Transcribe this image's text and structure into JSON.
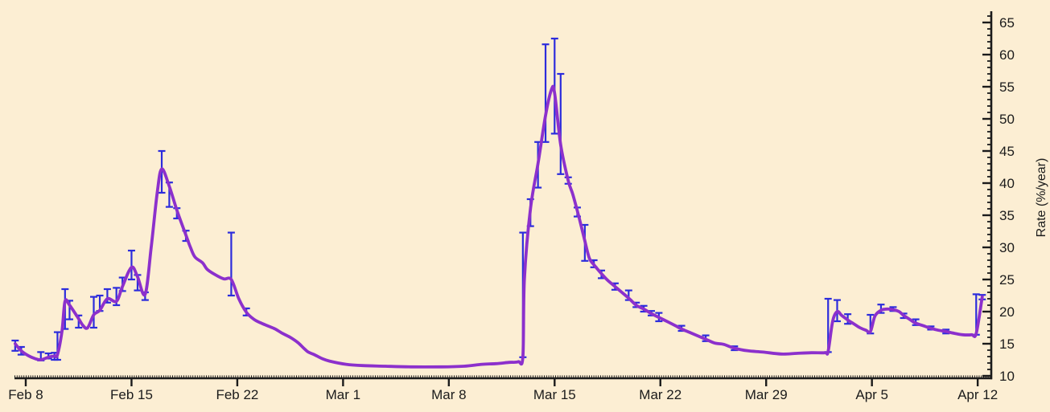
{
  "chart_data": {
    "type": "line",
    "title": "",
    "ylabel": "Rate (%/year)",
    "grid": false,
    "legend": null,
    "x_ticks": [
      {
        "day": 0,
        "label": "Feb 8"
      },
      {
        "day": 7,
        "label": "Feb 15"
      },
      {
        "day": 14,
        "label": "Feb 22"
      },
      {
        "day": 21,
        "label": "Mar 1"
      },
      {
        "day": 28,
        "label": "Mar 8"
      },
      {
        "day": 35,
        "label": "Mar 15"
      },
      {
        "day": 42,
        "label": "Mar 22"
      },
      {
        "day": 49,
        "label": "Mar 29"
      },
      {
        "day": 56,
        "label": "Apr 5"
      },
      {
        "day": 63,
        "label": "Apr 12"
      }
    ],
    "y_axis": {
      "min": 10,
      "max": 65,
      "major_step": 5,
      "minor_step": 1,
      "side": "right"
    },
    "x_range_days": [
      -0.8,
      63.6
    ],
    "colors": {
      "background": "#FCEED3",
      "axis": "#1b1b1b",
      "text": "#1b1b1b",
      "line": "#8C30CC",
      "error_bar": "#2C2CDC"
    },
    "series": [
      {
        "name": "Rate",
        "points": [
          [
            -0.7,
            15.0,
            13.9,
            15.5
          ],
          [
            -0.3,
            13.9,
            13.3,
            14.5
          ],
          [
            0.2,
            13.1
          ],
          [
            0.6,
            12.7
          ],
          [
            1.0,
            12.5,
            12.4,
            13.7
          ],
          [
            1.5,
            12.9,
            12.7,
            13.5
          ],
          [
            1.9,
            13.1,
            12.5,
            13.6
          ],
          [
            2.1,
            13.3,
            12.5,
            16.8
          ],
          [
            2.4,
            17.0
          ],
          [
            2.6,
            21.6,
            17.3,
            23.5
          ],
          [
            2.9,
            21.0,
            18.8,
            21.7
          ],
          [
            3.5,
            18.9,
            17.5,
            19.4
          ],
          [
            3.8,
            17.8
          ],
          [
            4.1,
            17.5
          ],
          [
            4.5,
            19.5,
            17.5,
            22.3
          ],
          [
            4.9,
            20.2,
            20.1,
            22.5
          ],
          [
            5.4,
            22.0,
            21.4,
            23.5
          ],
          [
            6.0,
            21.6,
            21.0,
            23.7
          ],
          [
            6.4,
            23.9,
            23.2,
            25.3
          ],
          [
            7.0,
            26.9,
            25.0,
            29.5
          ],
          [
            7.4,
            25.4,
            23.3,
            25.7
          ],
          [
            7.9,
            22.7,
            21.8,
            23.0
          ],
          [
            8.3,
            30.0
          ],
          [
            8.7,
            38.5
          ],
          [
            9.0,
            42.2,
            38.5,
            45.0
          ],
          [
            9.5,
            39.5,
            36.3,
            40.1
          ],
          [
            10.0,
            35.8,
            34.5,
            36.1
          ],
          [
            10.6,
            31.9,
            31.0,
            32.6
          ],
          [
            10.9,
            30.0
          ],
          [
            11.2,
            28.5
          ],
          [
            11.7,
            27.6
          ],
          [
            12.0,
            26.6
          ],
          [
            12.5,
            25.8
          ],
          [
            13.1,
            25.1
          ],
          [
            13.6,
            25.0,
            22.5,
            32.3
          ],
          [
            14.1,
            22.0
          ],
          [
            14.6,
            19.9,
            19.4,
            20.5
          ],
          [
            15.1,
            18.8
          ],
          [
            15.5,
            18.3
          ],
          [
            16.0,
            17.8
          ],
          [
            16.5,
            17.3
          ],
          [
            17.0,
            16.6
          ],
          [
            17.5,
            16.0
          ],
          [
            18.0,
            15.2
          ],
          [
            18.4,
            14.3
          ],
          [
            18.7,
            13.7
          ],
          [
            19.1,
            13.3
          ],
          [
            19.6,
            12.7
          ],
          [
            20.1,
            12.3
          ],
          [
            21.2,
            11.8
          ],
          [
            22.3,
            11.6
          ],
          [
            23.8,
            11.5
          ],
          [
            25.5,
            11.4
          ],
          [
            27.5,
            11.4
          ],
          [
            29.0,
            11.5
          ],
          [
            30.2,
            11.8
          ],
          [
            31.1,
            11.9
          ],
          [
            32.0,
            12.1
          ],
          [
            32.6,
            12.2
          ],
          [
            32.9,
            13.0,
            12.9,
            32.3
          ],
          [
            33.0,
            25.0
          ],
          [
            33.4,
            36.0,
            33.3,
            37.5
          ],
          [
            33.9,
            43.0,
            39.3,
            46.4
          ],
          [
            34.4,
            50.5,
            46.4,
            61.6
          ],
          [
            34.8,
            54.6
          ],
          [
            35.0,
            54.0,
            47.7,
            62.5
          ],
          [
            35.4,
            46.0,
            41.4,
            57.0
          ],
          [
            35.9,
            40.4,
            39.9,
            40.9
          ],
          [
            36.2,
            38.3
          ],
          [
            36.5,
            35.7,
            34.8,
            36.2
          ],
          [
            36.7,
            33.9
          ],
          [
            37.0,
            31.0,
            27.9,
            33.5
          ],
          [
            37.3,
            28.3
          ],
          [
            37.6,
            27.3,
            26.9,
            28.0
          ],
          [
            38.1,
            25.9,
            25.2,
            26.4
          ],
          [
            38.5,
            24.9
          ],
          [
            39.0,
            23.9,
            23.4,
            24.4
          ],
          [
            39.4,
            23.1
          ],
          [
            39.9,
            22.1,
            21.8,
            23.3
          ],
          [
            40.4,
            21.0,
            20.7,
            21.4
          ],
          [
            40.9,
            20.4,
            20.0,
            20.9
          ],
          [
            41.4,
            19.7,
            19.4,
            20.1
          ],
          [
            41.9,
            19.1,
            18.5,
            19.8
          ],
          [
            42.5,
            18.4
          ],
          [
            43.0,
            17.8
          ],
          [
            43.4,
            17.3,
            17.0,
            17.8
          ],
          [
            44.0,
            16.7
          ],
          [
            44.5,
            16.2
          ],
          [
            45.0,
            15.7,
            15.4,
            16.3
          ],
          [
            45.6,
            15.1
          ],
          [
            46.2,
            14.9
          ],
          [
            46.9,
            14.3,
            14.0,
            14.6
          ],
          [
            47.8,
            13.9
          ],
          [
            48.8,
            13.7
          ],
          [
            50.0,
            13.4
          ],
          [
            51.0,
            13.5
          ],
          [
            52.0,
            13.6
          ],
          [
            52.9,
            13.6
          ],
          [
            53.1,
            13.8,
            13.7,
            22.0
          ],
          [
            53.4,
            18.5
          ],
          [
            53.7,
            20.0,
            18.5,
            21.8
          ],
          [
            54.0,
            19.4
          ],
          [
            54.4,
            18.7,
            18.1,
            19.6
          ],
          [
            54.8,
            18.1
          ],
          [
            55.2,
            17.5
          ],
          [
            55.6,
            17.1
          ],
          [
            55.9,
            16.9,
            16.6,
            19.5
          ],
          [
            56.2,
            19.3
          ],
          [
            56.6,
            20.2,
            19.8,
            21.1
          ],
          [
            57.0,
            20.4
          ],
          [
            57.4,
            20.3,
            20.1,
            20.7
          ],
          [
            57.8,
            20.0
          ],
          [
            58.1,
            19.4,
            19.0,
            19.7
          ],
          [
            58.5,
            18.8
          ],
          [
            58.9,
            18.2,
            17.9,
            18.8
          ],
          [
            59.4,
            17.8
          ],
          [
            59.9,
            17.4,
            17.2,
            17.7
          ],
          [
            60.4,
            17.1
          ],
          [
            60.9,
            16.9,
            16.6,
            17.2
          ],
          [
            61.5,
            16.6
          ],
          [
            62.0,
            16.4
          ],
          [
            62.6,
            16.4
          ],
          [
            62.9,
            16.6,
            16.4,
            22.7
          ],
          [
            63.3,
            22.3,
            21.9,
            22.6
          ]
        ]
      }
    ]
  }
}
